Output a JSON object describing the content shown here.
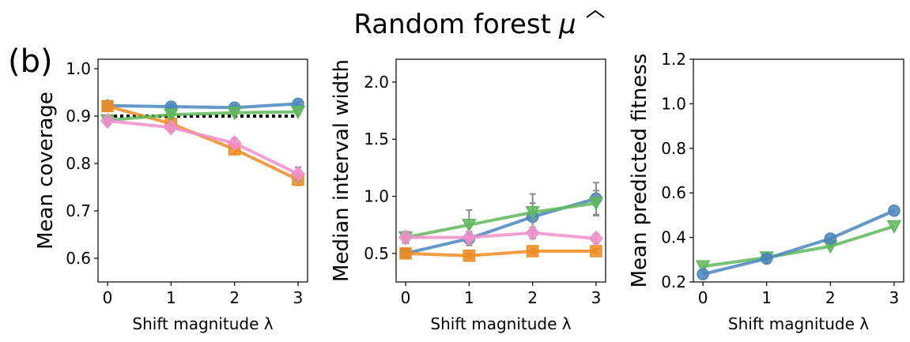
{
  "figure": {
    "title": "Random forest",
    "title_symbol": "μ",
    "panel_label": "(b)"
  },
  "colors": {
    "blue": "#4a86be",
    "orange": "#f28c1f",
    "green": "#5fb95a",
    "pink": "#f08fcb",
    "errorbar": "#8c8c8c",
    "reference": "#000000"
  },
  "chart_data": [
    {
      "type": "line",
      "ylabel": "Mean coverage",
      "xlabel": "Shift magnitude λ",
      "x": [
        0,
        1,
        2,
        3
      ],
      "xticks": [
        "0",
        "1",
        "2",
        "3"
      ],
      "xlim": [
        -0.15,
        3.15
      ],
      "ylim": [
        0.55,
        1.02
      ],
      "yticks": [
        "0.6",
        "0.7",
        "0.8",
        "0.9",
        "1.0"
      ],
      "reference_line": {
        "y": 0.9,
        "style": "dotted"
      },
      "series": [
        {
          "color": "blue",
          "marker": "circle",
          "values": [
            0.922,
            0.92,
            0.918,
            0.926
          ],
          "err": [
            0.004,
            0.004,
            0.004,
            0.004
          ]
        },
        {
          "color": "orange",
          "marker": "square",
          "values": [
            0.921,
            0.884,
            0.83,
            0.766
          ],
          "err": [
            0.006,
            0.008,
            0.01,
            0.012
          ]
        },
        {
          "color": "green",
          "marker": "triangle",
          "values": [
            0.891,
            0.903,
            0.907,
            0.909
          ],
          "err": [
            0.004,
            0.004,
            0.004,
            0.004
          ]
        },
        {
          "color": "pink",
          "marker": "diamond",
          "values": [
            0.89,
            0.876,
            0.843,
            0.778
          ],
          "err": [
            0.006,
            0.008,
            0.01,
            0.014
          ]
        }
      ]
    },
    {
      "type": "line",
      "ylabel": "Median interval width",
      "xlabel": "Shift magnitude λ",
      "x": [
        0,
        1,
        2,
        3
      ],
      "xticks": [
        "0",
        "1",
        "2",
        "3"
      ],
      "xlim": [
        -0.15,
        3.15
      ],
      "ylim": [
        0.25,
        2.2
      ],
      "yticks": [
        "0.5",
        "1.0",
        "1.5",
        "2.0"
      ],
      "series": [
        {
          "color": "blue",
          "marker": "circle",
          "values": [
            0.5,
            0.63,
            0.82,
            0.98
          ],
          "err": [
            0.03,
            0.06,
            0.12,
            0.14
          ]
        },
        {
          "color": "orange",
          "marker": "square",
          "values": [
            0.5,
            0.48,
            0.52,
            0.52
          ],
          "err": [
            0.02,
            0.02,
            0.02,
            0.02
          ]
        },
        {
          "color": "green",
          "marker": "triangle",
          "values": [
            0.64,
            0.75,
            0.86,
            0.94
          ],
          "err": [
            0.05,
            0.13,
            0.16,
            0.11
          ]
        },
        {
          "color": "pink",
          "marker": "diamond",
          "values": [
            0.64,
            0.64,
            0.68,
            0.63
          ],
          "err": [
            0.04,
            0.05,
            0.05,
            0.04
          ]
        }
      ]
    },
    {
      "type": "line",
      "ylabel": "Mean predicted fitness",
      "xlabel": "Shift magnitude λ",
      "x": [
        0,
        1,
        2,
        3
      ],
      "xticks": [
        "0",
        "1",
        "2",
        "3"
      ],
      "xlim": [
        -0.15,
        3.15
      ],
      "ylim": [
        0.2,
        1.2
      ],
      "yticks": [
        "0.2",
        "0.4",
        "0.6",
        "0.8",
        "1.0",
        "1.2"
      ],
      "series": [
        {
          "color": "green",
          "marker": "triangle",
          "values": [
            0.27,
            0.31,
            0.36,
            0.45
          ],
          "err": [
            0,
            0,
            0,
            0
          ]
        },
        {
          "color": "blue",
          "marker": "circle",
          "values": [
            0.235,
            0.305,
            0.395,
            0.52
          ],
          "err": [
            0,
            0,
            0,
            0
          ]
        }
      ]
    }
  ]
}
